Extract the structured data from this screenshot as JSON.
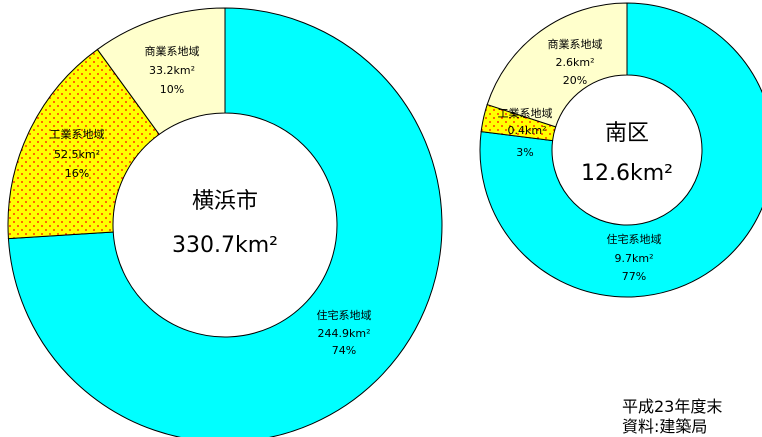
{
  "chart_data": [
    {
      "type": "pie",
      "center_name": "横浜市",
      "center_area": "330.7",
      "unit": "km²",
      "slices": [
        {
          "name": "住宅系地域",
          "area": "244.9km²",
          "percent": "74%",
          "value": 74,
          "color": "#00ffff",
          "pattern": "solid"
        },
        {
          "name": "工業系地域",
          "area": "52.5km²",
          "percent": "16%",
          "value": 16,
          "color": "#ffff00",
          "pattern": "dots"
        },
        {
          "name": "商業系地域",
          "area": "33.2km²",
          "percent": "10%",
          "value": 10,
          "color": "#ffffcc",
          "pattern": "solid"
        }
      ]
    },
    {
      "type": "pie",
      "center_name": "南区",
      "center_area": "12.6",
      "unit": "km²",
      "slices": [
        {
          "name": "住宅系地域",
          "area": "9.7km²",
          "percent": "77%",
          "value": 77,
          "color": "#00ffff",
          "pattern": "solid"
        },
        {
          "name": "工業系地域",
          "area": "0.4km²",
          "percent": "3%",
          "value": 3,
          "color": "#ffff00",
          "pattern": "dots"
        },
        {
          "name": "商業系地域",
          "area": "2.6km²",
          "percent": "20%",
          "value": 20,
          "color": "#ffffcc",
          "pattern": "solid"
        }
      ]
    }
  ],
  "footnote": {
    "date": "平成23年度末",
    "source": "資料:建築局"
  }
}
